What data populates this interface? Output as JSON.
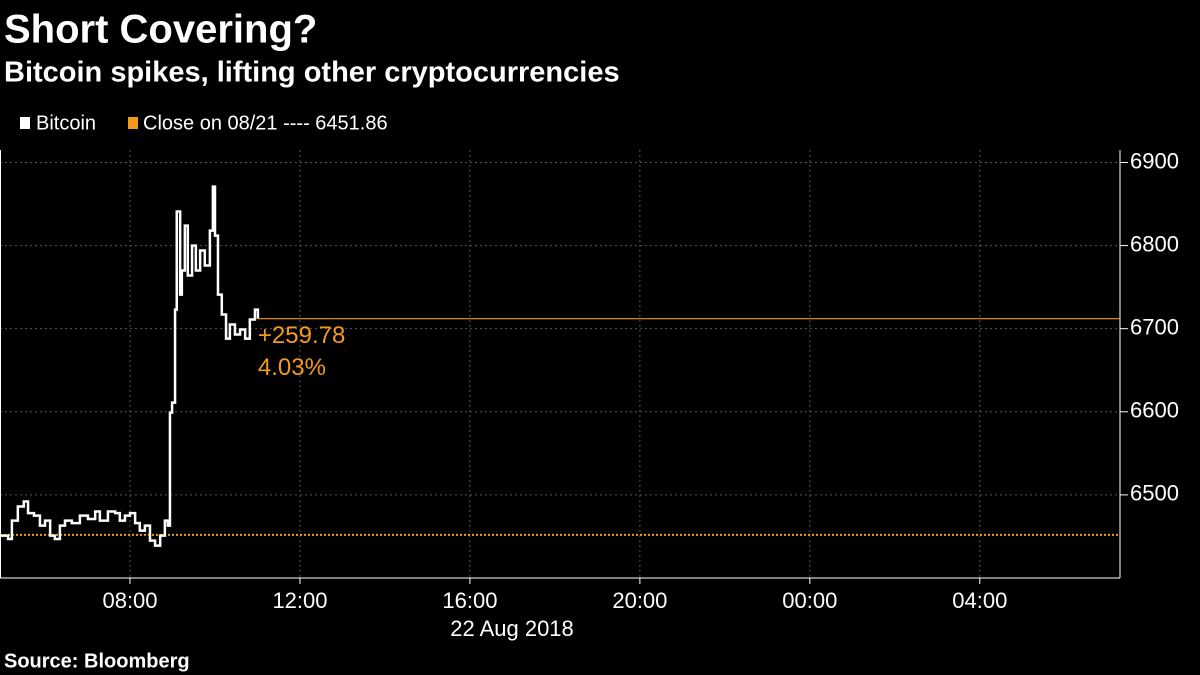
{
  "chart_data": {
    "type": "line",
    "title": "Short Covering?",
    "subtitle": "Bitcoin spikes, lifting other cryptocurrencies",
    "source": "Source: Bloomberg",
    "xlabel": "22 Aug 2018",
    "xlim": [
      4.94,
      31.3
    ],
    "xticks": [
      {
        "value": 8,
        "label": "08:00"
      },
      {
        "value": 12,
        "label": "12:00"
      },
      {
        "value": 16,
        "label": "16:00"
      },
      {
        "value": 20,
        "label": "20:00"
      },
      {
        "value": 24,
        "label": "00:00"
      },
      {
        "value": 28,
        "label": "04:00"
      }
    ],
    "ylim": [
      6400,
      6915
    ],
    "yticks": [
      6500,
      6600,
      6700,
      6800,
      6900
    ],
    "grid": true,
    "series": [
      {
        "name": "Bitcoin",
        "color": "#ffffff",
        "x": [
          4.94,
          5.13,
          5.22,
          5.36,
          5.5,
          5.6,
          5.74,
          5.88,
          6.0,
          6.12,
          6.23,
          6.35,
          6.47,
          6.63,
          6.82,
          7.01,
          7.18,
          7.29,
          7.48,
          7.65,
          7.76,
          7.88,
          8.0,
          8.12,
          8.23,
          8.35,
          8.47,
          8.59,
          8.71,
          8.82,
          8.89,
          8.94,
          8.99,
          9.06,
          9.1,
          9.18,
          9.22,
          9.29,
          9.36,
          9.46,
          9.55,
          9.65,
          9.76,
          9.88,
          9.95,
          10.0,
          10.07,
          10.16,
          10.26,
          10.35,
          10.47,
          10.59,
          10.71,
          10.82,
          10.94,
          11.01
        ],
        "values": [
          6451,
          6447,
          6469,
          6486,
          6492,
          6478,
          6475,
          6463,
          6469,
          6451,
          6447,
          6463,
          6469,
          6466,
          6475,
          6471,
          6480,
          6469,
          6480,
          6478,
          6469,
          6475,
          6478,
          6466,
          6457,
          6463,
          6445,
          6439,
          6451,
          6469,
          6463,
          6599,
          6611,
          6723,
          6841,
          6741,
          6770,
          6824,
          6764,
          6800,
          6770,
          6794,
          6776,
          6818,
          6871,
          6812,
          6741,
          6717,
          6688,
          6705,
          6693,
          6699,
          6688,
          6711,
          6723,
          6712
        ]
      }
    ],
    "reference": {
      "name": "Close on 08/21 ---- 6451.86",
      "value": 6451.86,
      "color": "#f39a1e"
    },
    "annotations": [
      "+259.78",
      "4.03%"
    ]
  }
}
